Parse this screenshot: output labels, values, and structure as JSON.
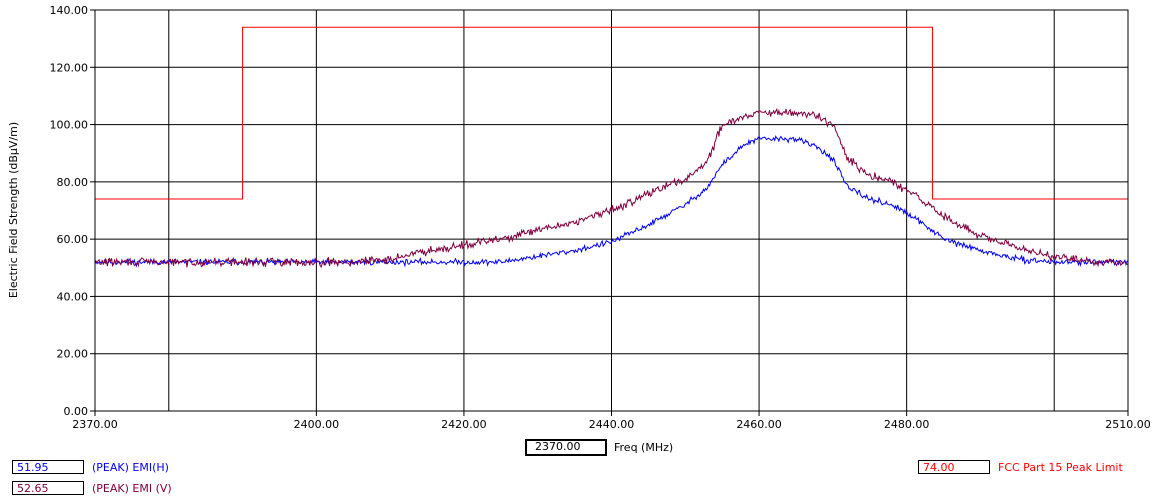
{
  "chart_data": {
    "type": "line",
    "xlabel": "Freq (MHz)",
    "ylabel": "Electric Field Strength (dBµV/m)",
    "xlim": [
      2370,
      2510
    ],
    "ylim": [
      0,
      140
    ],
    "x_ticks": [
      "2370.00",
      "2400.00",
      "2420.00",
      "2440.00",
      "2460.00",
      "2480.00",
      "2510.00"
    ],
    "x_tick_values": [
      2370,
      2400,
      2420,
      2440,
      2460,
      2480,
      2510
    ],
    "x_grid_values": [
      2380,
      2400,
      2420,
      2440,
      2460,
      2480,
      2500
    ],
    "y_ticks": [
      "0.00",
      "20.00",
      "40.00",
      "60.00",
      "80.00",
      "100.00",
      "120.00",
      "140.00"
    ],
    "y_tick_values": [
      0,
      20,
      40,
      60,
      80,
      100,
      120,
      140
    ],
    "grid": true,
    "series": [
      {
        "name": "FCC Part 15 Peak Limit",
        "color": "#ff0000",
        "x": [
          2370,
          2390,
          2390,
          2483.5,
          2483.5,
          2510
        ],
        "y": [
          74,
          74,
          134,
          134,
          74,
          74
        ]
      },
      {
        "name": "(PEAK) EMI(H)",
        "color": "#0000ff",
        "x": [
          2370,
          2380,
          2390,
          2400,
          2410,
          2420,
          2425,
          2430,
          2435,
          2440,
          2445,
          2450,
          2453,
          2455,
          2458,
          2460,
          2463,
          2465,
          2468,
          2470,
          2472,
          2475,
          2478,
          2480,
          2483,
          2485,
          2490,
          2495,
          2500,
          2505,
          2510
        ],
        "y": [
          52,
          52,
          52,
          52,
          52,
          52,
          52,
          54,
          56,
          59,
          65,
          72,
          78,
          86,
          93,
          95,
          95,
          95,
          92,
          88,
          78,
          74,
          72,
          69,
          64,
          60,
          56,
          53,
          52,
          52,
          52
        ],
        "noise": 0.7,
        "seed": 11
      },
      {
        "name": "(PEAK) EMI (V)",
        "color": "#800040",
        "x": [
          2370,
          2380,
          2390,
          2400,
          2405,
          2410,
          2415,
          2420,
          2425,
          2430,
          2435,
          2440,
          2445,
          2450,
          2453,
          2455,
          2458,
          2460,
          2463,
          2465,
          2468,
          2470,
          2472,
          2475,
          2478,
          2480,
          2483,
          2485,
          2490,
          2495,
          2500,
          2505,
          2510
        ],
        "y": [
          52,
          52,
          52,
          52,
          52,
          53,
          56,
          58,
          60,
          63,
          66,
          70,
          76,
          81,
          87,
          100,
          103,
          104,
          104,
          104,
          103,
          100,
          88,
          82,
          80,
          77,
          72,
          68,
          61,
          57,
          54,
          52,
          52
        ],
        "noise": 1.0,
        "seed": 29
      }
    ]
  },
  "freq_readout": "2370.00",
  "legend": {
    "h_value": "51.95",
    "h_label": "(PEAK) EMI(H)",
    "v_value": "52.65",
    "v_label": "(PEAK) EMI (V)",
    "limit_value": "74.00",
    "limit_label": "FCC Part 15 Peak Limit"
  }
}
